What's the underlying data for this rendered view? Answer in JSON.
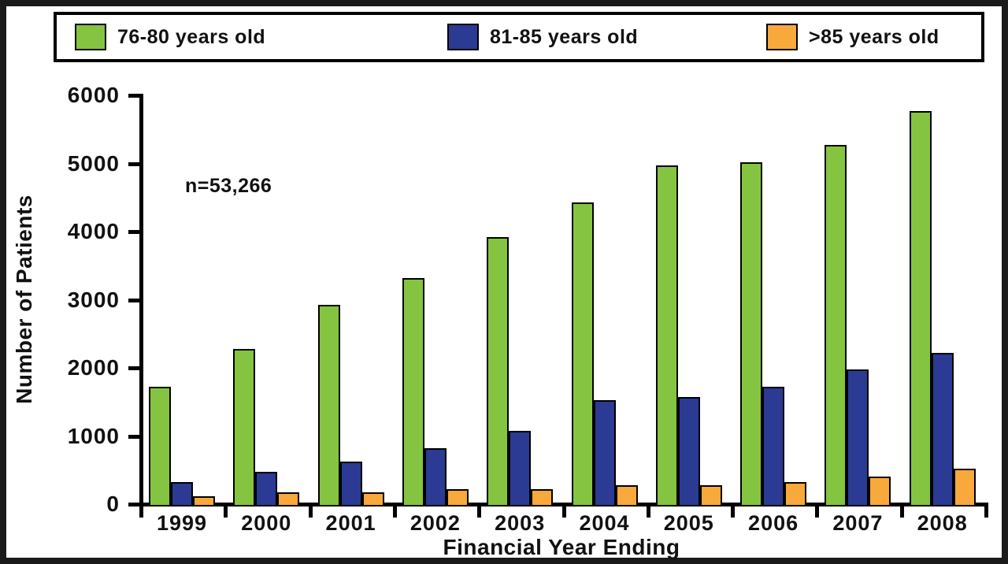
{
  "chart_data": {
    "type": "bar",
    "title": "",
    "xlabel": "Financial Year Ending",
    "ylabel": "Number of Patients",
    "annotation": "n=53,266",
    "categories": [
      "1999",
      "2000",
      "2001",
      "2002",
      "2003",
      "2004",
      "2005",
      "2006",
      "2007",
      "2008"
    ],
    "series": [
      {
        "name": "76-80 years old",
        "color": "#85C440",
        "values": [
          1700,
          2250,
          2900,
          3300,
          3900,
          4400,
          4950,
          5000,
          5250,
          5750
        ]
      },
      {
        "name": "81-85 years old",
        "color": "#2B3A92",
        "values": [
          300,
          450,
          600,
          800,
          1050,
          1500,
          1550,
          1700,
          1950,
          2200
        ]
      },
      {
        "name": ">85 years old",
        "color": "#F9A83C",
        "values": [
          90,
          150,
          150,
          200,
          200,
          250,
          260,
          300,
          380,
          500
        ]
      }
    ],
    "ylim": [
      0,
      6000
    ],
    "ytick_step": 1000,
    "yticks": [
      "0",
      "1000",
      "2000",
      "3000",
      "4000",
      "5000",
      "6000"
    ],
    "legend_position": "top",
    "grid": false,
    "bar_outline_color": "#000000",
    "axis_color": "#000000"
  }
}
